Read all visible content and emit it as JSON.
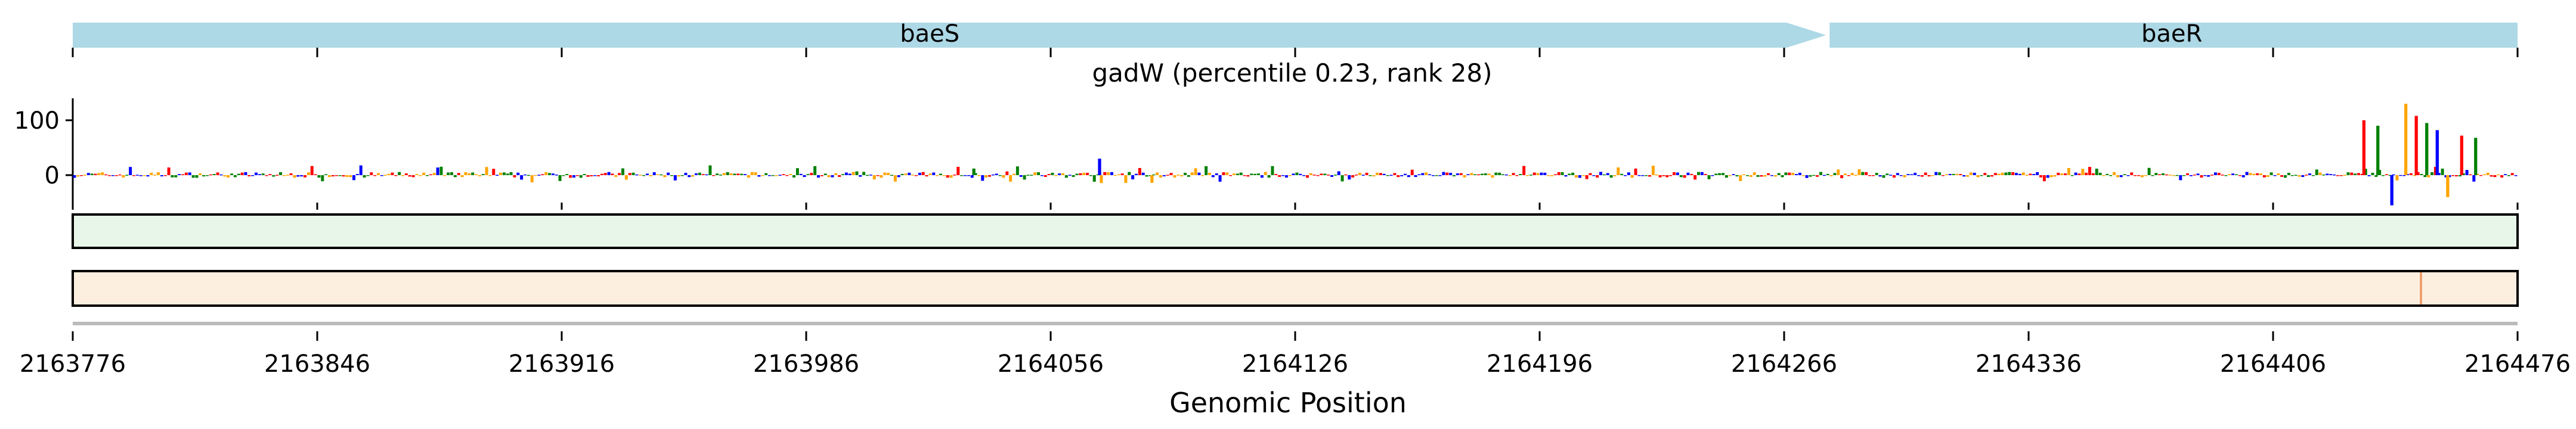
{
  "chart_data": {
    "type": "area",
    "title": "gadW (percentile 0.23, rank 28)",
    "xlabel": "Genomic Position",
    "ylabel": "",
    "xlim": [
      2163776,
      2164476
    ],
    "ylim": [
      -50,
      140
    ],
    "x_ticks": [
      "2163776",
      "2163846",
      "2163916",
      "2163986",
      "2164056",
      "2164126",
      "2164196",
      "2164266",
      "2164336",
      "2164406",
      "2164476"
    ],
    "x_tick_values": [
      2163776,
      2163846,
      2163916,
      2163986,
      2164056,
      2164126,
      2164196,
      2164266,
      2164336,
      2164406,
      2164476
    ],
    "y_ticks": [
      "100",
      "0"
    ],
    "y_tick_values": [
      100,
      0
    ],
    "genes": [
      {
        "name": "baeS",
        "start": 2163776,
        "end": 2164278,
        "strand": "+",
        "color": "#add8e6"
      },
      {
        "name": "baeR",
        "start": 2164278,
        "end": 2164476,
        "strand": "+",
        "color": "#add8e6"
      }
    ],
    "logo_colors": {
      "A": "#008000",
      "C": "#0000ff",
      "G": "#ffa500",
      "T": "#ff0000"
    },
    "attribution_peaks": [
      {
        "x": 2164034,
        "value": 12
      },
      {
        "x": 2164070,
        "value": 30
      },
      {
        "x": 2164085,
        "value": -14
      },
      {
        "x": 2164432,
        "value": 100
      },
      {
        "x": 2164436,
        "value": 90
      },
      {
        "x": 2164440,
        "value": -55
      },
      {
        "x": 2164444,
        "value": 130
      },
      {
        "x": 2164447,
        "value": 108
      },
      {
        "x": 2164450,
        "value": 95
      },
      {
        "x": 2164453,
        "value": 82
      },
      {
        "x": 2164456,
        "value": -40
      },
      {
        "x": 2164460,
        "value": 72
      },
      {
        "x": 2164464,
        "value": 68
      }
    ],
    "tracks": [
      {
        "name": "green-heat-track",
        "color": "#e8f5e9"
      },
      {
        "name": "orange-heat-track",
        "color": "#fdefe0"
      }
    ],
    "grid": false
  }
}
